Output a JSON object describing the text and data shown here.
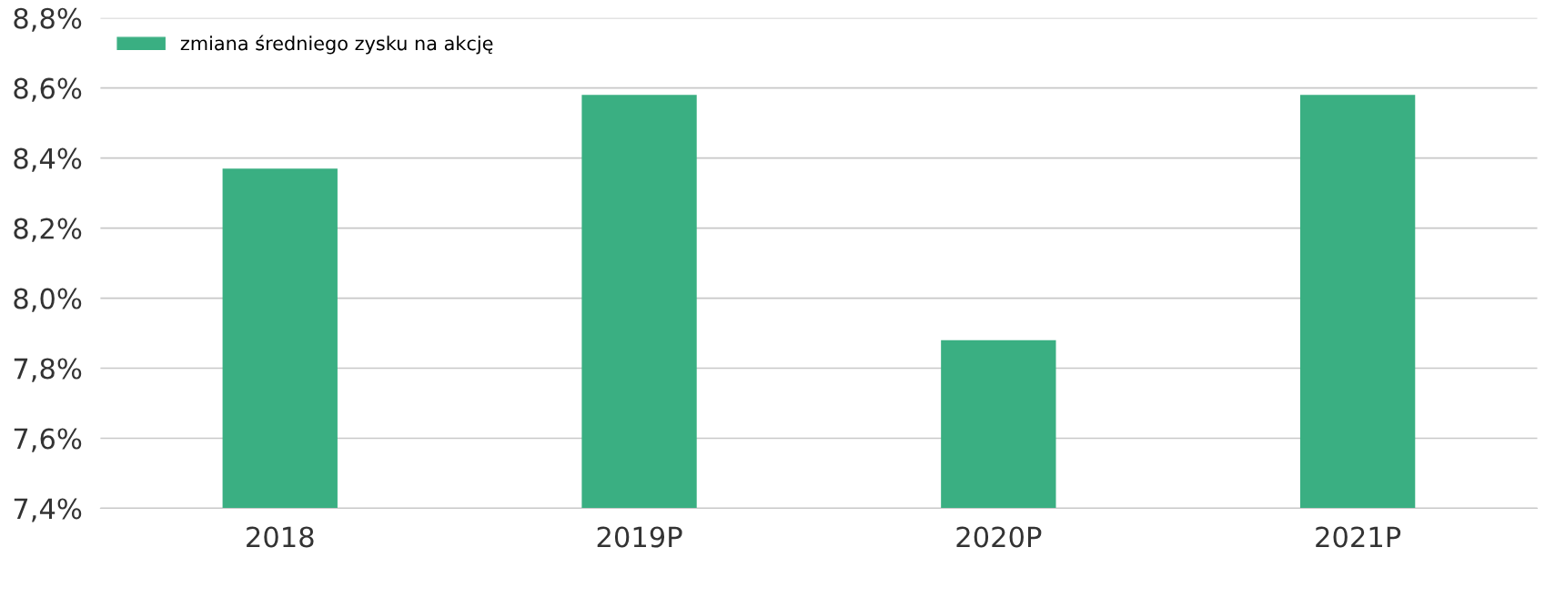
{
  "chart_data": {
    "type": "bar",
    "categories": [
      "2018",
      "2019P",
      "2020P",
      "2021P"
    ],
    "series": [
      {
        "name": "zmiana średniego zysku na akcję",
        "color": "#3aaf82",
        "values": [
          8.37,
          8.58,
          7.88,
          8.58
        ]
      }
    ],
    "ylim": [
      7.4,
      8.8
    ],
    "yticks": [
      {
        "value": 7.4,
        "label": "7,4%"
      },
      {
        "value": 7.6,
        "label": "7,6%"
      },
      {
        "value": 7.8,
        "label": "7,8%"
      },
      {
        "value": 8.0,
        "label": "8,0%"
      },
      {
        "value": 8.2,
        "label": "8,2%"
      },
      {
        "value": 8.4,
        "label": "8,4%"
      },
      {
        "value": 8.6,
        "label": "8,6%"
      },
      {
        "value": 8.8,
        "label": "8,8%"
      }
    ],
    "grid": "y",
    "legend": "top left"
  }
}
